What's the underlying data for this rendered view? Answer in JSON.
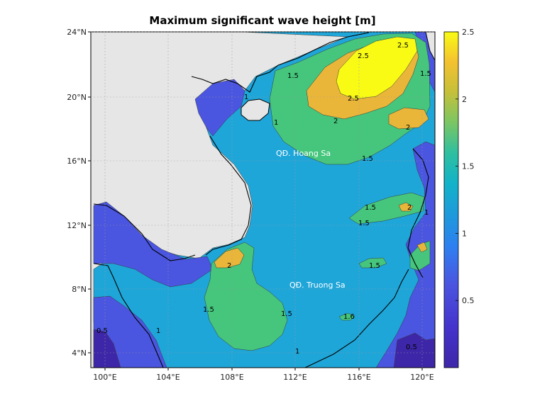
{
  "title": "Maximum significant wave height [m]",
  "map": {
    "lat_ticks": [
      "24°N",
      "20°N",
      "16°N",
      "12°N",
      "8°N",
      "4°N"
    ],
    "lon_ticks": [
      "100°E",
      "104°E",
      "108°E",
      "112°E",
      "116°E",
      "120°E"
    ],
    "places": [
      "QĐ. Hoang Sa",
      "QĐ. Truong Sa"
    ],
    "contour_labels": [
      "2.5",
      "2.5",
      "2.5",
      "2",
      "2",
      "2",
      "2",
      "1.5",
      "1.5",
      "1.5",
      "1.5",
      "1.5",
      "1.5",
      "1.5",
      "1.5",
      "1",
      "1",
      "1",
      "1",
      "1",
      "0.5",
      "0.5",
      "1.6"
    ],
    "colors": {
      "land": "#e6e6e6",
      "level_0_5": "#3e26a8",
      "level_1": "#4a55e0",
      "level_1_5": "#1fa6d9",
      "level_2": "#45c67c",
      "level_2_5": "#eab63a",
      "level_max": "#f9fb15"
    }
  },
  "colorbar": {
    "ticks": [
      "2.5",
      "2",
      "1.5",
      "1",
      "0.5"
    ],
    "min": 0.0,
    "max": 2.5
  }
}
